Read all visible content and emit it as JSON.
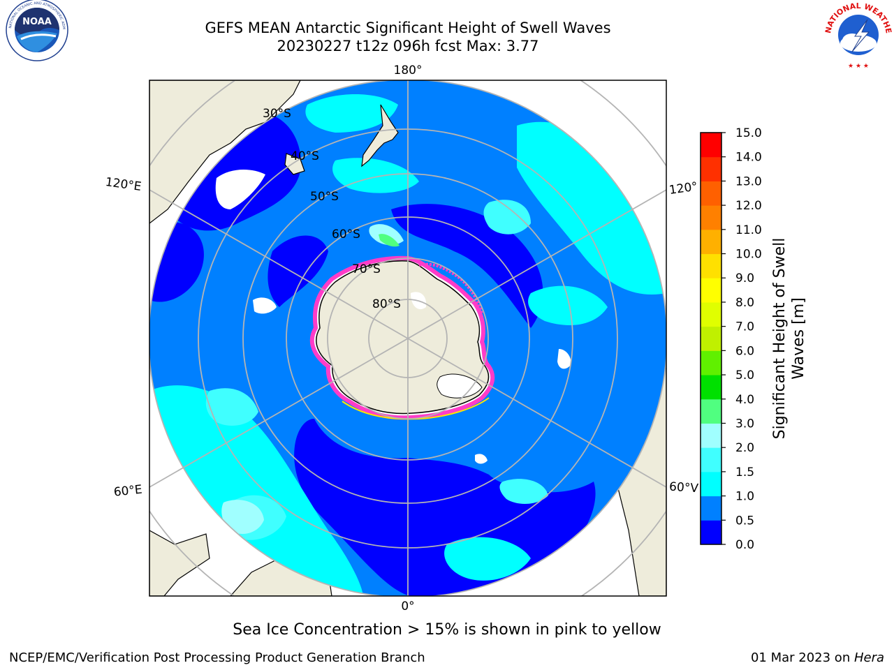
{
  "header": {
    "title_line1": "GEFS MEAN Antarctic Significant Height of Swell Waves",
    "title_line2": "20230227 t12z 096h fcst   Max: 3.77"
  },
  "logos": {
    "left": {
      "name": "noaa-logo",
      "text": "NOAA",
      "ring_text": "NATIONAL OCEANIC AND ATMOSPHERIC ADMINISTRATION · U.S. DEPARTMENT OF COMMERCE"
    },
    "right": {
      "name": "nws-logo",
      "ring_text": "NATIONAL WEATHER SERVICE"
    }
  },
  "map": {
    "projection": "south-polar-stereographic",
    "meridian_labels": {
      "top": "180°",
      "bottom": "0°",
      "left_upper": "120°E",
      "left_lower": "60°E",
      "right_upper": "120°",
      "right_lower": "60°V"
    },
    "latitude_labels": [
      "30°S",
      "40°S",
      "50°S",
      "60°S",
      "70°S",
      "80°S"
    ],
    "colors": {
      "land": "#eeecdb",
      "coast": "#000000",
      "grid": "#b4b4b4",
      "sea_ice_low": "#ff3cc8",
      "sea_ice_high": "#ffe600",
      "open_water_missing": "#ffffff"
    }
  },
  "colorbar": {
    "label_line1": "Significant Height of Swell",
    "label_line2": "Waves [m]",
    "ticks": [
      "0.0",
      "0.5",
      "1.0",
      "1.5",
      "2.0",
      "3.0",
      "4.0",
      "5.0",
      "6.0",
      "7.0",
      "8.0",
      "9.0",
      "10.0",
      "11.0",
      "12.0",
      "13.0",
      "14.0",
      "15.0"
    ],
    "colors": [
      "#0000ff",
      "#0080ff",
      "#00ffff",
      "#40ffff",
      "#a0ffff",
      "#50ff80",
      "#00e000",
      "#60f000",
      "#c0f000",
      "#e0ff00",
      "#ffff00",
      "#ffe000",
      "#ffb000",
      "#ff8000",
      "#ff6000",
      "#ff3000",
      "#ff0000"
    ]
  },
  "note": "Sea Ice Concentration > 15% is shown in pink to yellow",
  "footer": {
    "left": "NCEP/EMC/Verification Post Processing Product Generation Branch",
    "right_date": "01 Mar 2023 on ",
    "right_machine": "Hera"
  }
}
